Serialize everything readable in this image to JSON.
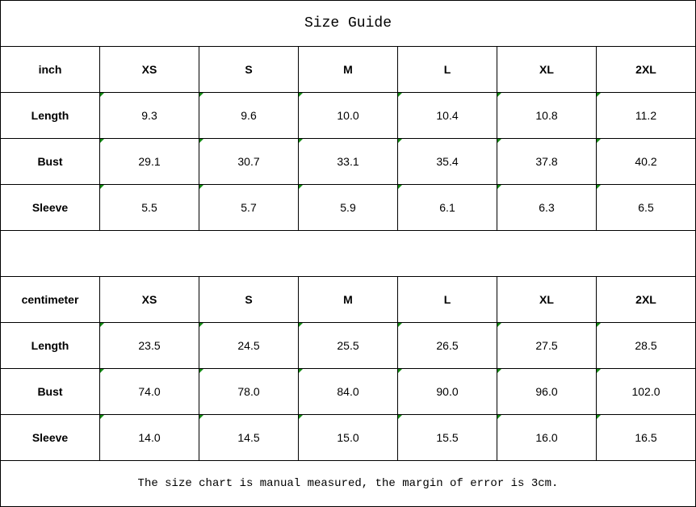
{
  "title": "Size Guide",
  "indicator_color": "#138a13",
  "inch": {
    "header": [
      "inch",
      "XS",
      "S",
      "M",
      "L",
      "XL",
      "2XL"
    ],
    "rows": [
      [
        "Length",
        "9.3",
        "9.6",
        "10.0",
        "10.4",
        "10.8",
        "11.2"
      ],
      [
        "Bust",
        "29.1",
        "30.7",
        "33.1",
        "35.4",
        "37.8",
        "40.2"
      ],
      [
        "Sleeve",
        "5.5",
        "5.7",
        "5.9",
        "6.1",
        "6.3",
        "6.5"
      ]
    ]
  },
  "centimeter": {
    "header": [
      "centimeter",
      "XS",
      "S",
      "M",
      "L",
      "XL",
      "2XL"
    ],
    "rows": [
      [
        "Length",
        "23.5",
        "24.5",
        "25.5",
        "26.5",
        "27.5",
        "28.5"
      ],
      [
        "Bust",
        "74.0",
        "78.0",
        "84.0",
        "90.0",
        "96.0",
        "102.0"
      ],
      [
        "Sleeve",
        "14.0",
        "14.5",
        "15.0",
        "15.5",
        "16.0",
        "16.5"
      ]
    ]
  },
  "note": "The size chart is manual measured, the margin of error is 3cm."
}
